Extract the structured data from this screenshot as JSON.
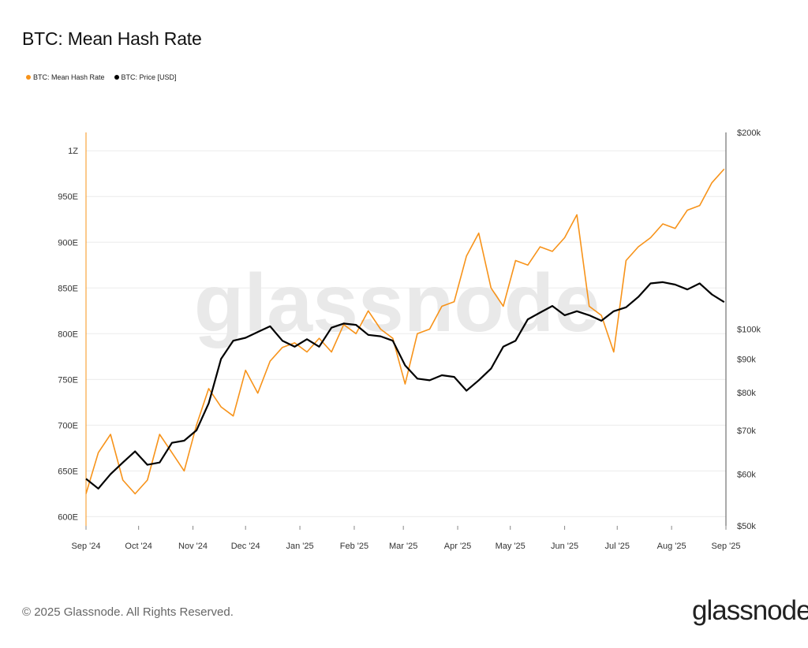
{
  "title": "BTC: Mean Hash Rate",
  "legend": [
    {
      "label": "BTC: Mean Hash Rate",
      "color": "#f7931a"
    },
    {
      "label": "BTC: Price [USD]",
      "color": "#000000"
    }
  ],
  "watermark": "glassnode",
  "footer": {
    "copyright": "© 2025 Glassnode. All Rights Reserved.",
    "brand": "glassnode"
  },
  "chart_data": {
    "type": "line",
    "x_ticks": [
      "Sep '24",
      "Oct '24",
      "Nov '24",
      "Dec '24",
      "Jan '25",
      "Feb '25",
      "Mar '25",
      "Apr '25",
      "May '25",
      "Jun '25",
      "Jul '25",
      "Aug '25",
      "Sep '25"
    ],
    "left_axis": {
      "ticks": [
        "600E",
        "650E",
        "700E",
        "750E",
        "800E",
        "850E",
        "900E",
        "950E",
        "1Z"
      ],
      "values": [
        600,
        650,
        700,
        750,
        800,
        850,
        900,
        950,
        1000
      ],
      "range": [
        590,
        1020
      ],
      "unit": "EH/s"
    },
    "right_axis": {
      "ticks": [
        "$50k",
        "$60k",
        "$70k",
        "$80k",
        "$90k",
        "$100k",
        "$200k"
      ],
      "values": [
        50000,
        60000,
        70000,
        80000,
        90000,
        100000,
        200000
      ],
      "scale": "log",
      "range": [
        50000,
        200000
      ]
    },
    "grid": true,
    "legend_position": "top-left",
    "series": [
      {
        "name": "BTC: Mean Hash Rate",
        "axis": "left",
        "color": "#f7931a",
        "x": [
          "2024-09-01",
          "2024-09-08",
          "2024-09-15",
          "2024-09-22",
          "2024-09-29",
          "2024-10-06",
          "2024-10-13",
          "2024-10-20",
          "2024-10-27",
          "2024-11-03",
          "2024-11-10",
          "2024-11-17",
          "2024-11-24",
          "2024-12-01",
          "2024-12-08",
          "2024-12-15",
          "2024-12-22",
          "2024-12-29",
          "2025-01-05",
          "2025-01-12",
          "2025-01-19",
          "2025-01-26",
          "2025-02-02",
          "2025-02-09",
          "2025-02-16",
          "2025-02-23",
          "2025-03-02",
          "2025-03-09",
          "2025-03-16",
          "2025-03-23",
          "2025-03-30",
          "2025-04-06",
          "2025-04-13",
          "2025-04-20",
          "2025-04-27",
          "2025-05-04",
          "2025-05-11",
          "2025-05-18",
          "2025-05-25",
          "2025-06-01",
          "2025-06-08",
          "2025-06-15",
          "2025-06-22",
          "2025-06-29",
          "2025-07-06",
          "2025-07-13",
          "2025-07-20",
          "2025-07-27",
          "2025-08-03",
          "2025-08-10",
          "2025-08-17",
          "2025-08-24",
          "2025-08-31"
        ],
        "y": [
          625,
          670,
          690,
          640,
          625,
          640,
          690,
          670,
          650,
          700,
          740,
          720,
          710,
          760,
          735,
          770,
          785,
          790,
          780,
          795,
          780,
          810,
          800,
          825,
          805,
          795,
          745,
          800,
          805,
          830,
          835,
          885,
          910,
          850,
          830,
          880,
          875,
          895,
          890,
          905,
          930,
          830,
          820,
          780,
          880,
          895,
          905,
          920,
          915,
          935,
          940,
          965,
          980
        ]
      },
      {
        "name": "BTC: Price [USD]",
        "axis": "right",
        "color": "#000000",
        "x": [
          "2024-09-01",
          "2024-09-08",
          "2024-09-15",
          "2024-09-22",
          "2024-09-29",
          "2024-10-06",
          "2024-10-13",
          "2024-10-20",
          "2024-10-27",
          "2024-11-03",
          "2024-11-10",
          "2024-11-17",
          "2024-11-24",
          "2024-12-01",
          "2024-12-08",
          "2024-12-15",
          "2024-12-22",
          "2024-12-29",
          "2025-01-05",
          "2025-01-12",
          "2025-01-19",
          "2025-01-26",
          "2025-02-02",
          "2025-02-09",
          "2025-02-16",
          "2025-02-23",
          "2025-03-02",
          "2025-03-09",
          "2025-03-16",
          "2025-03-23",
          "2025-03-30",
          "2025-04-06",
          "2025-04-13",
          "2025-04-20",
          "2025-04-27",
          "2025-05-04",
          "2025-05-11",
          "2025-05-18",
          "2025-05-25",
          "2025-06-01",
          "2025-06-08",
          "2025-06-15",
          "2025-06-22",
          "2025-06-29",
          "2025-07-06",
          "2025-07-13",
          "2025-07-20",
          "2025-07-27",
          "2025-08-03",
          "2025-08-10",
          "2025-08-17",
          "2025-08-24",
          "2025-08-31"
        ],
        "y": [
          59000,
          57000,
          60000,
          62500,
          65000,
          62000,
          62500,
          67000,
          67500,
          70000,
          77000,
          90000,
          96000,
          97000,
          99000,
          101000,
          96000,
          94000,
          96500,
          94000,
          100500,
          102000,
          101500,
          98000,
          97500,
          96000,
          88000,
          84000,
          83500,
          85000,
          84500,
          80500,
          83500,
          87000,
          94000,
          96000,
          103500,
          106000,
          108500,
          105000,
          106500,
          105000,
          103000,
          106500,
          108000,
          112000,
          117500,
          118000,
          117000,
          115000,
          117500,
          113000,
          110000
        ]
      }
    ]
  }
}
